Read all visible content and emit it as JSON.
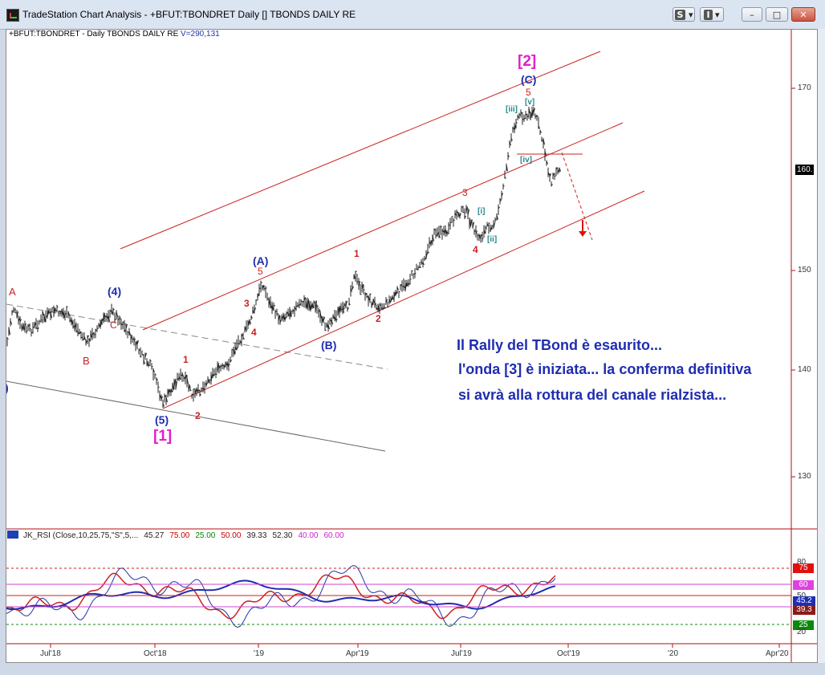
{
  "window": {
    "title": "TradeStation Chart Analysis - +BFUT:TBONDRET Daily [] TBONDS DAILY RE",
    "btn_s": "S",
    "btn_i": "I",
    "btn_min": "–",
    "btn_max": "□",
    "btn_close": "✕"
  },
  "chart_header": {
    "symbol": "+BFUT:TBONDRET - Daily  TBONDS DAILY RE",
    "volume": "V=290,131"
  },
  "price_axis": {
    "labels": [
      "170",
      "150",
      "140",
      "130"
    ],
    "last_price": "160."
  },
  "time_axis": {
    "labels": [
      "Jul'18",
      "Oct'18",
      "'19",
      "Apr'19",
      "Jul'19",
      "Oct'19",
      "'20",
      "Apr'20"
    ]
  },
  "annotation": {
    "line1": "Il Rally del TBond è esaurito...",
    "line2": "l'onda [3] è iniziata... la conferma definitiva",
    "line3": "si avrà alla rottura del canale rialzista..."
  },
  "wave_labels": {
    "A": "A",
    "B": "B",
    "C": "C",
    "w4paren": "(4)",
    "w5paren": "(5)",
    "w1bracket": "[1]",
    "w2bracket": "[2]",
    "wAparen": "(A)",
    "wBparen": "(B)",
    "wCparen": "(C)",
    "n1": "1",
    "n2": "2",
    "n3": "3",
    "n4": "4",
    "n5": "5",
    "ri": "[i]",
    "rii": "[ii]",
    "riii": "[iii]",
    "riv": "[iv]",
    "rv": "[v]",
    "leftparen": ")"
  },
  "indicator": {
    "name": "JK_RSI (Close,10,25,75,\"S\",5,...",
    "values": [
      "45.27",
      "75.00",
      "25.00",
      "50.00",
      "39.33",
      "52.30",
      "40.00",
      "60.00"
    ],
    "value_colors": [
      "#222222",
      "#cc0000",
      "#008800",
      "#cc0000",
      "#222222",
      "#222222",
      "#cc22cc",
      "#cc22cc"
    ],
    "axis_labels": [
      "80",
      "75",
      "60",
      "50",
      "45.2",
      "39.3",
      "25",
      "20"
    ],
    "badge_colors": {
      "75": "#e01010",
      "60": "#e040e0",
      "45.2": "#1f2db0",
      "39.3": "#8b1a1a",
      "25": "#0a8a0a"
    }
  },
  "colors": {
    "channel": "#cc2222",
    "wave_blue": "#1f2db0",
    "wave_red": "#cc2222",
    "wave_magenta": "#e020c8",
    "wave_teal": "#2a8a8a"
  }
}
